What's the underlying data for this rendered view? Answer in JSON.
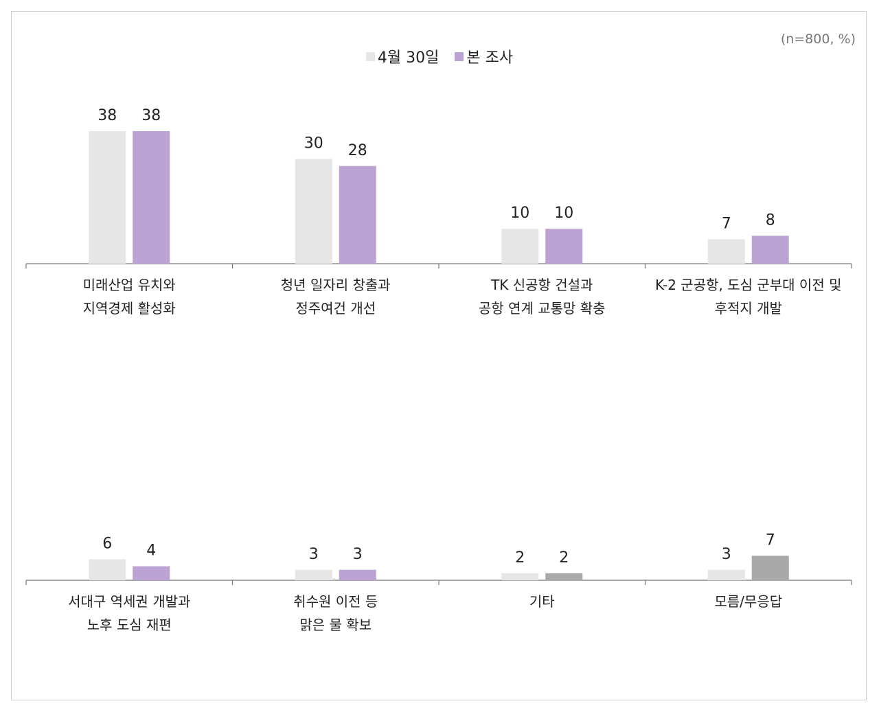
{
  "note": "(n=800, %)",
  "colors": {
    "previous": "#e6e6e6",
    "current": "#bba3d4",
    "current_unlabeled": "#a9a9a9",
    "axis": "#777777"
  },
  "chart_data": {
    "type": "bar",
    "legend": [
      "4월 30일",
      "본 조사"
    ],
    "legend_position": "top-center",
    "ylim": [
      0,
      40
    ],
    "grid": false,
    "series": [
      {
        "name": "4월 30일",
        "values": [
          38,
          30,
          10,
          7,
          6,
          3,
          2,
          3
        ]
      },
      {
        "name": "본 조사",
        "values": [
          38,
          28,
          10,
          8,
          4,
          3,
          2,
          7
        ]
      }
    ],
    "categories": [
      [
        "미래산업 유치와",
        "지역경제 활성화"
      ],
      [
        "청년 일자리 창출과",
        "정주여건 개선"
      ],
      [
        "TK 신공항 건설과",
        "공항 연계 교통망 확충"
      ],
      [
        "K-2 군공항, 도심 군부대 이전 및",
        "후적지 개발"
      ],
      [
        "서대구 역세권 개발과",
        "노후 도심 재편"
      ],
      [
        "취수원 이전 등",
        "맑은 물 확보"
      ],
      [
        "기타"
      ],
      [
        "모름/무응답"
      ]
    ]
  }
}
